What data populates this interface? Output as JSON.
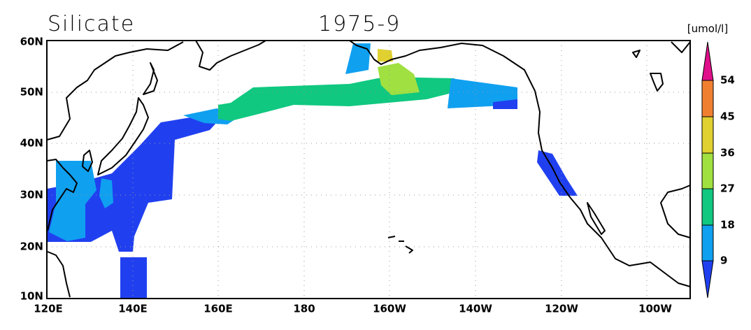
{
  "title": "Silicate",
  "date": "1975-9",
  "units": "[umol/l]",
  "map": {
    "lat_labels": [
      "60N",
      "50N",
      "40N",
      "30N",
      "20N",
      "10N"
    ],
    "lon_labels": [
      "120E",
      "140E",
      "160E",
      "180",
      "160W",
      "140W",
      "120W",
      "100W"
    ]
  },
  "colorbar": {
    "levels": [
      9,
      18,
      27,
      36,
      45,
      54
    ]
  }
}
